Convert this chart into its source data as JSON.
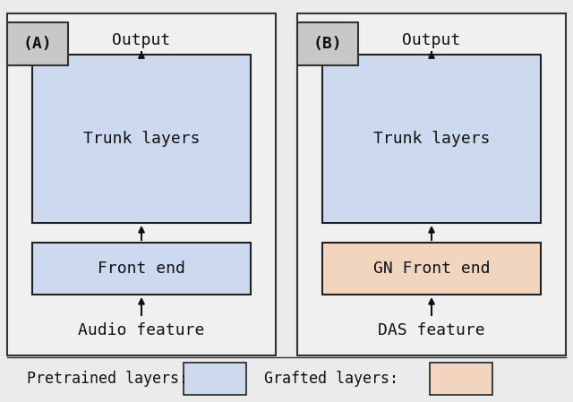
{
  "fig_width": 6.4,
  "fig_height": 4.49,
  "dpi": 100,
  "background_color": "#ebebeb",
  "panel_bg_color": "#f0f0f0",
  "label_box_color": "#c8c8c8",
  "pretrained_color": "#ccd9ee",
  "grafted_color": "#f2d5bf",
  "box_edge_color": "#222222",
  "panel_edge_color": "#333333",
  "label_color": "#111111",
  "panel_A_label": "(A)",
  "panel_B_label": "(B)",
  "trunk_label": "Trunk layers",
  "frontend_A_label": "Front end",
  "frontend_B_label": "GN Front end",
  "output_label": "Output",
  "input_A_label": "Audio feature",
  "input_B_label": "DAS feature",
  "legend_pretrained": "Pretrained layers:",
  "legend_grafted": "Grafted layers:",
  "font_family": "DejaVu Sans Mono"
}
